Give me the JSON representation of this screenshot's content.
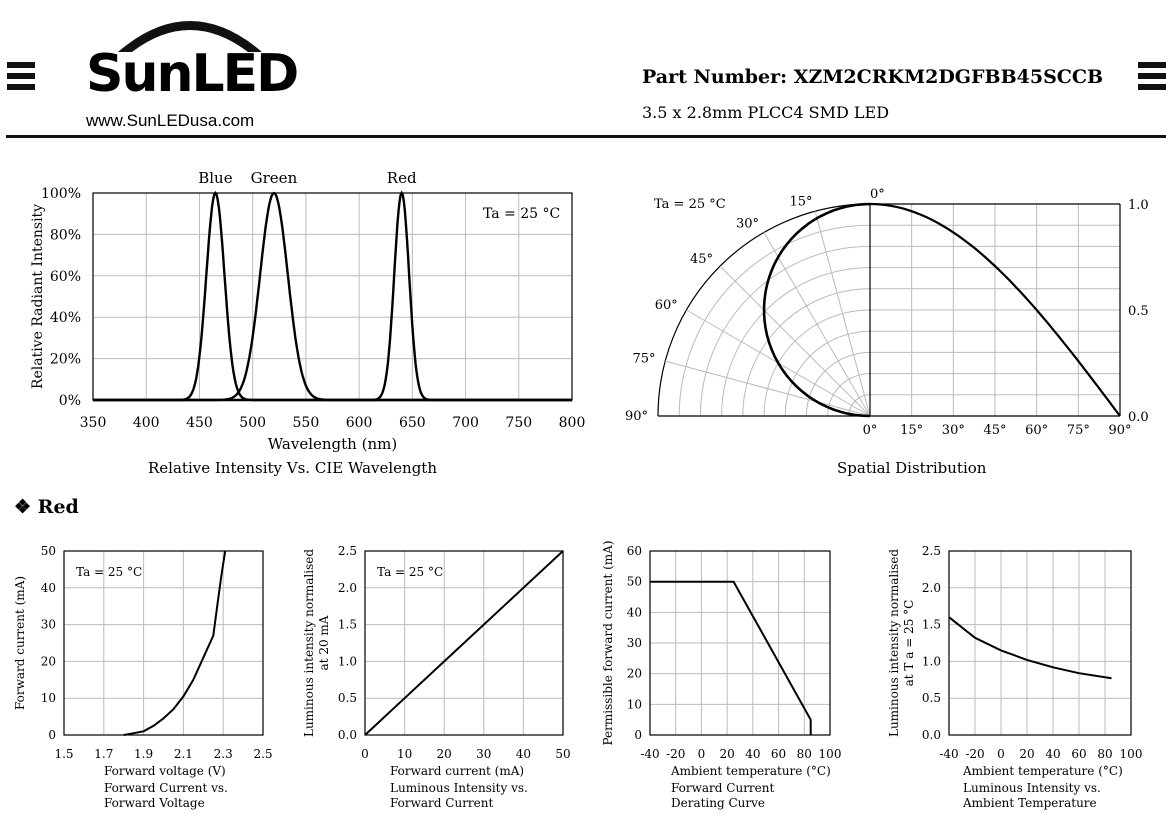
{
  "header": {
    "brand": "SunLED",
    "url": "www.SunLEDusa.com",
    "part_number": "Part Number: XZM2CRKM2DGFBB45SCCB",
    "description": "3.5 x 2.8mm PLCC4 SMD LED"
  },
  "captions": {
    "spectrum": "Relative Intensity Vs. CIE Wavelength",
    "spatial": "Spatial Distribution"
  },
  "section": {
    "title": "Red"
  },
  "chart_data": [
    {
      "id": "spectrum",
      "type": "line",
      "xlabel": "Wavelength (nm)",
      "ylabel": "Relative Radiant Intensity",
      "xlim": [
        350,
        800
      ],
      "ylim": [
        0,
        100
      ],
      "xticks": [
        350,
        400,
        450,
        500,
        550,
        600,
        650,
        700,
        750,
        800
      ],
      "yticks": [
        "0%",
        "20%",
        "40%",
        "60%",
        "80%",
        "100%"
      ],
      "annotation": "Ta = 25 °C",
      "grid": true,
      "series": [
        {
          "name": "Blue",
          "peak": 465,
          "sigma": 8.5
        },
        {
          "name": "Green",
          "peak": 520,
          "sigma": 13
        },
        {
          "name": "Red",
          "peak": 640,
          "sigma": 7
        }
      ]
    },
    {
      "id": "spatial",
      "type": "polar",
      "annotation": "Ta = 25 °C",
      "angle_labels": [
        "0°",
        "15°",
        "30°",
        "45°",
        "60°",
        "75°",
        "90°"
      ],
      "x_labels": [
        "0°",
        "15°",
        "30°",
        "45°",
        "60°",
        "75°",
        "90°"
      ],
      "right_labels": [
        "1.0",
        "0.5",
        "0.0"
      ],
      "points": [
        [
          0,
          1.0
        ],
        [
          15,
          0.966
        ],
        [
          30,
          0.866
        ],
        [
          45,
          0.707
        ],
        [
          60,
          0.5
        ],
        [
          75,
          0.259
        ],
        [
          90,
          0.0
        ]
      ]
    },
    {
      "id": "iv",
      "type": "line",
      "annotation": "Ta = 25 °C",
      "xlabel": "Forward voltage (V)",
      "ylabel": "Forward current (mA)",
      "caption": [
        "Forward Current vs.",
        "Forward Voltage"
      ],
      "xlim": [
        1.5,
        2.5
      ],
      "ylim": [
        0,
        50
      ],
      "xticks": [
        "1.5",
        "1.7",
        "1.9",
        "2.1",
        "2.3",
        "2.5"
      ],
      "yticks": [
        "0",
        "10",
        "20",
        "30",
        "40",
        "50"
      ],
      "x": [
        1.8,
        1.85,
        1.9,
        1.95,
        2.0,
        2.05,
        2.1,
        2.15,
        2.2,
        2.25,
        2.27,
        2.29,
        2.31
      ],
      "y": [
        0,
        0.5,
        1,
        2.5,
        4.5,
        7,
        10.5,
        15,
        21,
        27,
        35,
        43,
        50
      ]
    },
    {
      "id": "lum_current",
      "type": "line",
      "annotation": "Ta = 25 °C",
      "xlabel": "Forward current (mA)",
      "ylabel": [
        "Luminous intensity normalised",
        "at 20 mA"
      ],
      "caption": [
        "Luminous Intensity vs.",
        "Forward Current"
      ],
      "xlim": [
        0,
        50
      ],
      "ylim": [
        0,
        2.5
      ],
      "xticks": [
        "0",
        "10",
        "20",
        "30",
        "40",
        "50"
      ],
      "yticks": [
        "0.0",
        "0.5",
        "1.0",
        "1.5",
        "2.0",
        "2.5"
      ],
      "x": [
        0,
        10,
        20,
        30,
        40,
        50
      ],
      "y": [
        0,
        0.5,
        1.0,
        1.5,
        2.0,
        2.5
      ]
    },
    {
      "id": "derating",
      "type": "line",
      "xlabel": "Ambient temperature (°C)",
      "ylabel": "Permissible forward current (mA)",
      "caption": [
        "Forward Current",
        "Derating  Curve"
      ],
      "xlim": [
        -40,
        100
      ],
      "ylim": [
        0,
        60
      ],
      "xticks": [
        "-40",
        "-20",
        "0",
        "20",
        "40",
        "60",
        "80",
        "100"
      ],
      "yticks": [
        "0",
        "10",
        "20",
        "30",
        "40",
        "50",
        "60"
      ],
      "x": [
        -40,
        25,
        85,
        85
      ],
      "y": [
        50,
        50,
        5,
        0
      ]
    },
    {
      "id": "lum_temp",
      "type": "line",
      "xlabel": "Ambient temperature (°C)",
      "ylabel": [
        "Luminous intensity normalised",
        "at T a = 25 °C"
      ],
      "caption": [
        "Luminous Intensity vs.",
        "Ambient Temperature"
      ],
      "xlim": [
        -40,
        100
      ],
      "ylim": [
        0,
        2.5
      ],
      "xticks": [
        "-40",
        "-20",
        "0",
        "20",
        "40",
        "60",
        "80",
        "100"
      ],
      "yticks": [
        "0.0",
        "0.5",
        "1.0",
        "1.5",
        "2.0",
        "2.5"
      ],
      "x": [
        -40,
        -20,
        0,
        20,
        40,
        60,
        85
      ],
      "y": [
        1.6,
        1.32,
        1.15,
        1.02,
        0.92,
        0.84,
        0.77
      ]
    }
  ]
}
